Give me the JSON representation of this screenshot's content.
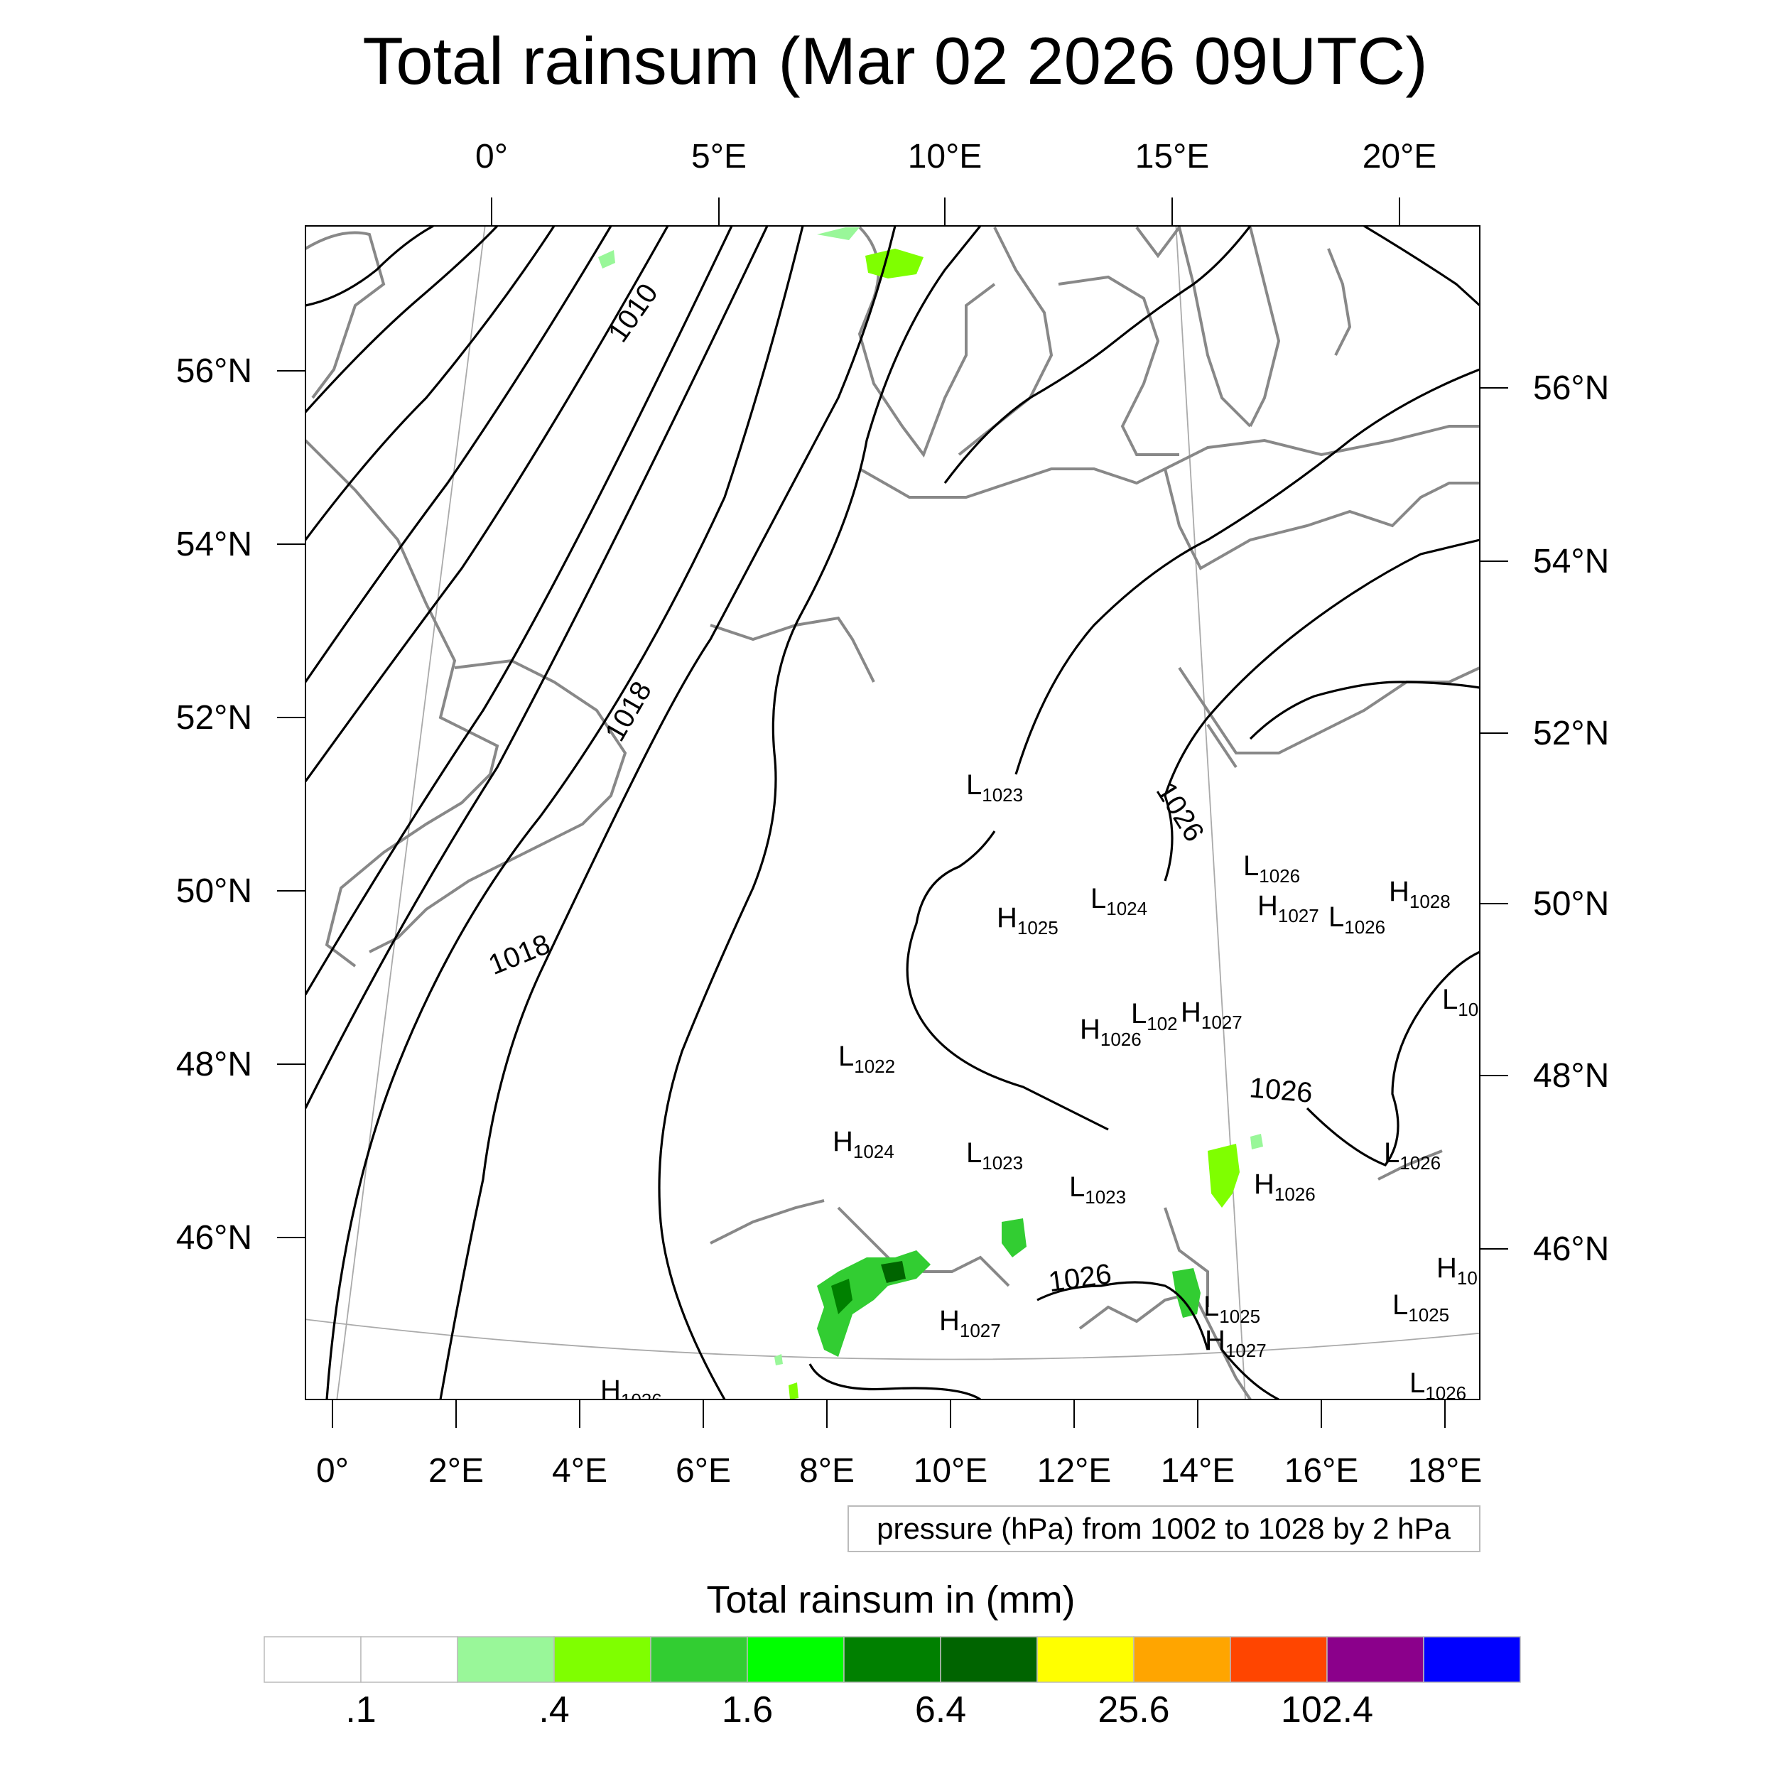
{
  "title": "Total rainsum (Mar 02 2026 09UTC)",
  "top_lon_labels": [
    "0°",
    "5°E",
    "10°E",
    "15°E",
    "20°E"
  ],
  "bottom_lon_labels": [
    "0°",
    "2°E",
    "4°E",
    "6°E",
    "8°E",
    "10°E",
    "12°E",
    "14°E",
    "16°E",
    "18°E"
  ],
  "left_lat_labels": [
    "56°N",
    "54°N",
    "52°N",
    "50°N",
    "48°N",
    "46°N"
  ],
  "right_lat_labels": [
    "56°N",
    "54°N",
    "52°N",
    "50°N",
    "48°N",
    "46°N"
  ],
  "isobar_labels": [
    "1010",
    "1018",
    "1018",
    "1026",
    "1026",
    "1026"
  ],
  "pressure_centers": [
    {
      "t": "L",
      "v": "1023"
    },
    {
      "t": "L",
      "v": "1026"
    },
    {
      "t": "H",
      "v": "1027"
    },
    {
      "t": "L",
      "v": "1026"
    },
    {
      "t": "H",
      "v": "1028"
    },
    {
      "t": "H",
      "v": "1025"
    },
    {
      "t": "L",
      "v": "1024"
    },
    {
      "t": "L",
      "v": "102"
    },
    {
      "t": "H",
      "v": "1027"
    },
    {
      "t": "H",
      "v": "1026"
    },
    {
      "t": "L",
      "v": "10"
    },
    {
      "t": "L",
      "v": "1022"
    },
    {
      "t": "H",
      "v": "1024"
    },
    {
      "t": "L",
      "v": "1023"
    },
    {
      "t": "L",
      "v": "1023"
    },
    {
      "t": "H",
      "v": "1026"
    },
    {
      "t": "L",
      "v": "1026"
    },
    {
      "t": "H",
      "v": "1027"
    },
    {
      "t": "L",
      "v": "1025"
    },
    {
      "t": "H",
      "v": "1027"
    },
    {
      "t": "H",
      "v": "10"
    },
    {
      "t": "L",
      "v": "1025"
    },
    {
      "t": "L",
      "v": "1026"
    },
    {
      "t": "H",
      "v": "1026"
    }
  ],
  "note": "pressure (hPa) from 1002 to 1028 by 2 hPa",
  "colorbar": {
    "title": "Total rainsum in (mm)",
    "colors": [
      "#ffffff",
      "#ffffff",
      "#99f799",
      "#7fff00",
      "#32cd32",
      "#00ff00",
      "#008000",
      "#006400",
      "#ffff00",
      "#ffa500",
      "#ff4500",
      "#8b008b",
      "#0000ff"
    ],
    "tick_labels": [
      ".1",
      ".4",
      "1.6",
      "6.4",
      "25.6",
      "102.4"
    ]
  },
  "legend_colors": {
    "land_outline": "#888888",
    "isobar": "#000000"
  }
}
